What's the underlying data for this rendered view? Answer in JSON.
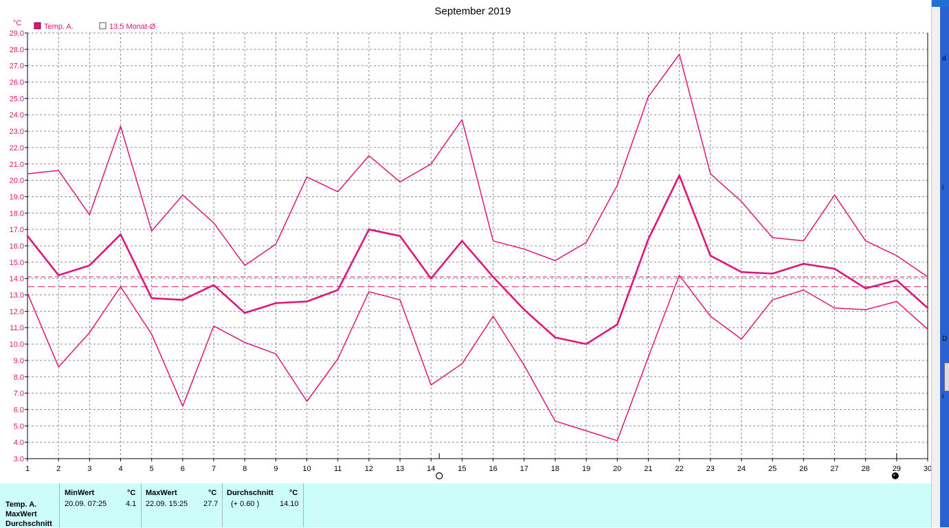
{
  "chart_data": {
    "type": "line",
    "title": "September 2019",
    "ylabel": "°C",
    "xlim": [
      1,
      30
    ],
    "ylim": [
      3.0,
      29.0
    ],
    "grid": true,
    "legend_position": "top-left",
    "x": [
      1,
      2,
      3,
      4,
      5,
      6,
      7,
      8,
      9,
      10,
      11,
      12,
      13,
      14,
      15,
      16,
      17,
      18,
      19,
      20,
      21,
      22,
      23,
      24,
      25,
      26,
      27,
      28,
      29,
      30
    ],
    "y_ticks": [
      "3.0",
      "4.0",
      "5.0",
      "6.0",
      "7.0",
      "8.0",
      "9.0",
      "10.0",
      "11.0",
      "12.0",
      "13.0",
      "14.0",
      "15.0",
      "16.0",
      "17.0",
      "18.0",
      "19.0",
      "20.0",
      "21.0",
      "22.0",
      "23.0",
      "24.0",
      "25.0",
      "26.0",
      "27.0",
      "28.0",
      "29.0"
    ],
    "legend": [
      {
        "label": "Temp. A.",
        "style": "filled",
        "color": "#e0157a"
      },
      {
        "label": "13.5 Monat-Ø",
        "style": "outline",
        "color": "#e0157a"
      }
    ],
    "series": [
      {
        "role": "max",
        "color": "#e0157a",
        "width": 1.5,
        "values": [
          20.4,
          20.6,
          17.9,
          23.3,
          16.9,
          19.1,
          17.4,
          14.8,
          16.1,
          20.2,
          19.3,
          21.5,
          19.9,
          21.0,
          23.7,
          16.3,
          15.8,
          15.1,
          16.2,
          19.7,
          25.1,
          27.7,
          20.4,
          18.7,
          16.5,
          16.3,
          19.1,
          16.3,
          15.4,
          14.1
        ]
      },
      {
        "role": "avg",
        "color": "#e0157a",
        "width": 2.6,
        "values": [
          16.6,
          14.2,
          14.8,
          16.7,
          12.8,
          12.7,
          13.6,
          11.9,
          12.5,
          12.6,
          13.3,
          17.0,
          16.6,
          14.0,
          16.3,
          14.1,
          12.1,
          10.4,
          10.0,
          11.2,
          16.4,
          20.3,
          15.4,
          14.4,
          14.3,
          14.9,
          14.6,
          13.4,
          13.9,
          12.2
        ]
      },
      {
        "role": "min",
        "color": "#e0157a",
        "width": 1.5,
        "values": [
          13.1,
          8.6,
          10.7,
          13.5,
          10.6,
          6.2,
          11.1,
          10.1,
          9.4,
          6.5,
          9.1,
          13.2,
          12.7,
          7.5,
          8.8,
          11.7,
          8.7,
          5.3,
          4.7,
          4.1,
          9.2,
          14.2,
          11.7,
          10.3,
          12.7,
          13.3,
          12.2,
          12.1,
          12.6,
          10.9
        ]
      }
    ],
    "reference_lines": [
      {
        "y": 14.1,
        "color": "#e0157a",
        "dash": "6 4"
      },
      {
        "y": 13.5,
        "color": "#e0157a",
        "dash": "10 5"
      }
    ],
    "moon_phases": [
      {
        "x": 14,
        "phase": "full"
      },
      {
        "x": 29,
        "phase": "new"
      }
    ]
  },
  "right_strip_letters": [
    "d",
    "i",
    "D",
    "i"
  ],
  "stats": {
    "row_labels": [
      "Temp. A.",
      "MaxWert",
      "Durchschnitt"
    ],
    "min": {
      "header": "MinWert",
      "unit": "°C",
      "datetime": "20.09.  07:25",
      "value": "4.1"
    },
    "max": {
      "header": "MaxWert",
      "unit": "°C",
      "datetime": "22.09.  15:25",
      "value": "27.7"
    },
    "avg": {
      "header": "Durchschnitt",
      "unit": "°C",
      "diff": "(+ 0.60 )",
      "value": "14.10"
    }
  }
}
